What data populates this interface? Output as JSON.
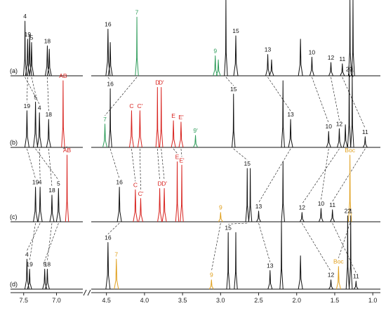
{
  "colors": {
    "black": "#111111",
    "red": "#d8231f",
    "green": "#2e9c5a",
    "orange": "#e0a01e",
    "axis": "#222222"
  },
  "chart_data": [
    {
      "type": "line",
      "title": "",
      "xlabel": "",
      "ylabel": "",
      "x_axis": {
        "range_ppm": [
          7.7,
          0.9
        ],
        "reversed": true,
        "broken": {
          "between": [
            6.6,
            4.7
          ]
        },
        "ticks": [
          7.5,
          7.0,
          4.5,
          4.0,
          3.5,
          3.0,
          2.5,
          2.0,
          1.5,
          1.0
        ],
        "tick_labels": [
          "7.5",
          "7.0",
          "4.5",
          "4.0",
          "3.5",
          "3.0",
          "2.5",
          "2.0",
          "1.5",
          "1.0"
        ]
      },
      "grid": false,
      "series": [
        {
          "name": "(a)",
          "panel_label": "(a)",
          "peaks": [
            {
              "ppm": 7.48,
              "h": 0.82,
              "label": "4"
            },
            {
              "ppm": 7.44,
              "h": 0.55,
              "label": "19"
            },
            {
              "ppm": 7.41,
              "h": 0.62,
              "label": ""
            },
            {
              "ppm": 7.38,
              "h": 0.5,
              "label": "5"
            },
            {
              "ppm": 7.14,
              "h": 0.45,
              "label": "18"
            },
            {
              "ppm": 7.11,
              "h": 0.4,
              "label": ""
            },
            {
              "ppm": 4.48,
              "h": 0.7,
              "label": "16"
            },
            {
              "ppm": 4.45,
              "h": 0.5,
              "label": ""
            },
            {
              "ppm": 4.1,
              "h": 0.88,
              "label": "7",
              "color": "green"
            },
            {
              "ppm": 3.07,
              "h": 0.3,
              "label": "9",
              "color": "green"
            },
            {
              "ppm": 3.03,
              "h": 0.24,
              "label": "",
              "color": "green"
            },
            {
              "ppm": 2.93,
              "h": 1.15,
              "label": "15"
            },
            {
              "ppm": 2.8,
              "h": 0.6,
              "label": "15"
            },
            {
              "ppm": 2.38,
              "h": 0.32,
              "label": "13"
            },
            {
              "ppm": 2.33,
              "h": 0.24,
              "label": ""
            },
            {
              "ppm": 1.95,
              "h": 0.55,
              "label": ""
            },
            {
              "ppm": 1.8,
              "h": 0.28,
              "label": "10"
            },
            {
              "ppm": 1.55,
              "h": 0.2,
              "label": "12"
            },
            {
              "ppm": 1.4,
              "h": 0.18,
              "label": "11"
            },
            {
              "ppm": 1.3,
              "h": 1.15,
              "label": "22"
            },
            {
              "ppm": 1.26,
              "h": 1.15,
              "label": "1"
            }
          ]
        },
        {
          "name": "(b)",
          "panel_label": "(b)",
          "peaks": [
            {
              "ppm": 7.45,
              "h": 0.55,
              "label": "19"
            },
            {
              "ppm": 7.32,
              "h": 0.68,
              "label": "5"
            },
            {
              "ppm": 7.26,
              "h": 0.52,
              "label": "4"
            },
            {
              "ppm": 7.12,
              "h": 0.42,
              "label": "18"
            },
            {
              "ppm": 6.9,
              "h": 1.0,
              "label": "AB",
              "color": "red"
            },
            {
              "ppm": 4.52,
              "h": 0.35,
              "label": "7",
              "color": "green"
            },
            {
              "ppm": 4.45,
              "h": 0.88,
              "label": "16"
            },
            {
              "ppm": 4.17,
              "h": 0.55,
              "label": "C",
              "color": "red"
            },
            {
              "ppm": 4.06,
              "h": 0.55,
              "label": "C'",
              "color": "red"
            },
            {
              "ppm": 3.83,
              "h": 0.9,
              "label": "D",
              "color": "red"
            },
            {
              "ppm": 3.78,
              "h": 0.9,
              "label": "D'",
              "color": "red"
            },
            {
              "ppm": 3.62,
              "h": 0.4,
              "label": "E",
              "color": "red"
            },
            {
              "ppm": 3.52,
              "h": 0.38,
              "label": "E'",
              "color": "red"
            },
            {
              "ppm": 3.33,
              "h": 0.18,
              "label": "9'",
              "color": "green"
            },
            {
              "ppm": 2.83,
              "h": 0.8,
              "label": "15"
            },
            {
              "ppm": 2.18,
              "h": 1.0,
              "label": ""
            },
            {
              "ppm": 2.08,
              "h": 0.42,
              "label": "13"
            },
            {
              "ppm": 1.58,
              "h": 0.24,
              "label": "10"
            },
            {
              "ppm": 1.44,
              "h": 0.28,
              "label": "12"
            },
            {
              "ppm": 1.36,
              "h": 0.34,
              "label": ""
            },
            {
              "ppm": 1.31,
              "h": 1.1,
              "label": "22"
            },
            {
              "ppm": 1.27,
              "h": 1.1,
              "label": "1"
            },
            {
              "ppm": 1.1,
              "h": 0.16,
              "label": "11"
            }
          ]
        },
        {
          "name": "(c)",
          "panel_label": "(c)",
          "peaks": [
            {
              "ppm": 7.32,
              "h": 0.52,
              "label": "19"
            },
            {
              "ppm": 7.25,
              "h": 0.52,
              "label": "4"
            },
            {
              "ppm": 7.07,
              "h": 0.4,
              "label": "18"
            },
            {
              "ppm": 6.97,
              "h": 0.5,
              "label": "5"
            },
            {
              "ppm": 6.84,
              "h": 1.0,
              "label": "AB",
              "color": "red"
            },
            {
              "ppm": 4.33,
              "h": 0.52,
              "label": "16"
            },
            {
              "ppm": 4.12,
              "h": 0.48,
              "label": "C",
              "color": "red"
            },
            {
              "ppm": 4.05,
              "h": 0.35,
              "label": "C'",
              "color": "red"
            },
            {
              "ppm": 3.8,
              "h": 0.5,
              "label": "D",
              "color": "red"
            },
            {
              "ppm": 3.74,
              "h": 0.5,
              "label": "D'",
              "color": "red"
            },
            {
              "ppm": 3.57,
              "h": 0.9,
              "label": "E",
              "color": "red"
            },
            {
              "ppm": 3.51,
              "h": 0.85,
              "label": "E'",
              "color": "red"
            },
            {
              "ppm": 3.0,
              "h": 0.14,
              "label": "9",
              "color": "orange"
            },
            {
              "ppm": 2.65,
              "h": 0.8,
              "label": "15"
            },
            {
              "ppm": 2.61,
              "h": 0.8,
              "label": ""
            },
            {
              "ppm": 2.5,
              "h": 0.16,
              "label": "13"
            },
            {
              "ppm": 2.18,
              "h": 0.9,
              "label": ""
            },
            {
              "ppm": 1.93,
              "h": 0.14,
              "label": "12"
            },
            {
              "ppm": 1.68,
              "h": 0.2,
              "label": "10"
            },
            {
              "ppm": 1.53,
              "h": 0.18,
              "label": "11"
            },
            {
              "ppm": 1.3,
              "h": 1.0,
              "label": "Boc",
              "color": "orange"
            }
          ]
        },
        {
          "name": "(d)",
          "panel_label": "(d)",
          "peaks": [
            {
              "ppm": 7.45,
              "h": 0.45,
              "label": "4"
            },
            {
              "ppm": 7.41,
              "h": 0.3,
              "label": "19"
            },
            {
              "ppm": 7.18,
              "h": 0.3,
              "label": "5"
            },
            {
              "ppm": 7.14,
              "h": 0.3,
              "label": "18"
            },
            {
              "ppm": 4.48,
              "h": 0.7,
              "label": "16"
            },
            {
              "ppm": 4.37,
              "h": 0.45,
              "label": "7",
              "color": "orange"
            },
            {
              "ppm": 3.12,
              "h": 0.14,
              "label": "9",
              "color": "orange"
            },
            {
              "ppm": 2.9,
              "h": 0.85,
              "label": "15"
            },
            {
              "ppm": 2.8,
              "h": 0.85,
              "label": ""
            },
            {
              "ppm": 2.35,
              "h": 0.28,
              "label": "13"
            },
            {
              "ppm": 2.2,
              "h": 1.0,
              "label": ""
            },
            {
              "ppm": 1.95,
              "h": 0.5,
              "label": ""
            },
            {
              "ppm": 1.55,
              "h": 0.14,
              "label": "12"
            },
            {
              "ppm": 1.45,
              "h": 0.34,
              "label": "Boc",
              "color": "orange"
            },
            {
              "ppm": 1.33,
              "h": 1.1,
              "label": "22"
            },
            {
              "ppm": 1.29,
              "h": 1.1,
              "label": "1"
            },
            {
              "ppm": 1.22,
              "h": 0.12,
              "label": "11"
            }
          ]
        }
      ]
    }
  ]
}
